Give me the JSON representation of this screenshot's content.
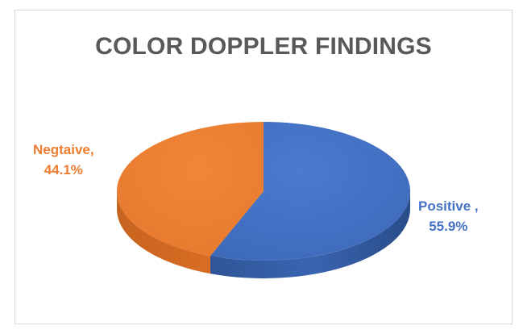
{
  "chart_data": {
    "type": "pie",
    "title": "COLOR DOPPLER FINDINGS",
    "categories": [
      "Positive",
      "Negtaive"
    ],
    "values": [
      55.9,
      44.1
    ],
    "unit": "%",
    "colors": [
      "#4472c4",
      "#ed7d31"
    ],
    "labels": [
      {
        "line1": "Positive ,",
        "line2": "55.9%"
      },
      {
        "line1": "Negtaive,",
        "line2": "44.1%"
      }
    ],
    "legend": "none",
    "style": "3d"
  }
}
